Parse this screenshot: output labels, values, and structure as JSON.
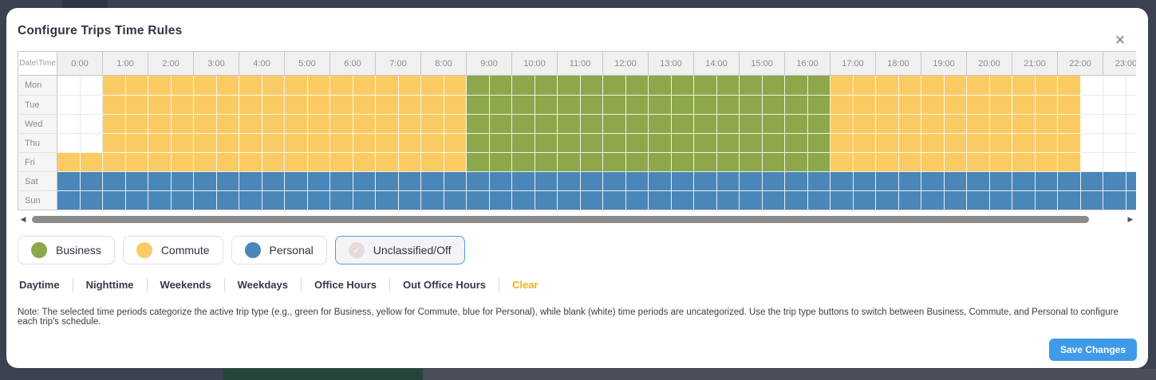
{
  "modal": {
    "title": "Configure Trips Time Rules",
    "close_icon": "✕"
  },
  "grid": {
    "corner_label": "Date\\Time",
    "hours": [
      "0:00",
      "1:00",
      "2:00",
      "3:00",
      "4:00",
      "5:00",
      "6:00",
      "7:00",
      "8:00",
      "9:00",
      "10:00",
      "11:00",
      "12:00",
      "13:00",
      "14:00",
      "15:00",
      "16:00",
      "17:00",
      "18:00",
      "19:00",
      "20:00",
      "21:00",
      "22:00",
      "23:00"
    ],
    "slot_minutes": 30,
    "days": [
      {
        "label": "Mon",
        "segments": [
          {
            "type": "off",
            "slots": 2
          },
          {
            "type": "commute",
            "slots": 16
          },
          {
            "type": "business",
            "slots": 16
          },
          {
            "type": "commute",
            "slots": 11
          },
          {
            "type": "off",
            "slots": 3
          }
        ]
      },
      {
        "label": "Tue",
        "segments": [
          {
            "type": "off",
            "slots": 2
          },
          {
            "type": "commute",
            "slots": 16
          },
          {
            "type": "business",
            "slots": 16
          },
          {
            "type": "commute",
            "slots": 11
          },
          {
            "type": "off",
            "slots": 3
          }
        ]
      },
      {
        "label": "Wed",
        "segments": [
          {
            "type": "off",
            "slots": 2
          },
          {
            "type": "commute",
            "slots": 16
          },
          {
            "type": "business",
            "slots": 16
          },
          {
            "type": "commute",
            "slots": 11
          },
          {
            "type": "off",
            "slots": 3
          }
        ]
      },
      {
        "label": "Thu",
        "segments": [
          {
            "type": "off",
            "slots": 2
          },
          {
            "type": "commute",
            "slots": 16
          },
          {
            "type": "business",
            "slots": 16
          },
          {
            "type": "commute",
            "slots": 11
          },
          {
            "type": "off",
            "slots": 3
          }
        ]
      },
      {
        "label": "Fri",
        "segments": [
          {
            "type": "commute",
            "slots": 18
          },
          {
            "type": "business",
            "slots": 16
          },
          {
            "type": "commute",
            "slots": 11
          },
          {
            "type": "off",
            "slots": 3
          }
        ]
      },
      {
        "label": "Sat",
        "segments": [
          {
            "type": "personal",
            "slots": 48
          }
        ]
      },
      {
        "label": "Sun",
        "segments": [
          {
            "type": "personal",
            "slots": 48
          }
        ]
      }
    ]
  },
  "colors": {
    "business": "#8CA84A",
    "commute": "#FBCB63",
    "personal": "#4A86B8",
    "off": "#FFFFFF",
    "accent": "#4A9CEC",
    "save": "#3F9BE9",
    "clear": "#F9B017",
    "unclassified_dot": "#E6DADA"
  },
  "legend": [
    {
      "id": "business",
      "label": "Business",
      "color": "#8CA84A",
      "selected": false
    },
    {
      "id": "commute",
      "label": "Commute",
      "color": "#FBCB63",
      "selected": false
    },
    {
      "id": "personal",
      "label": "Personal",
      "color": "#4A86B8",
      "selected": false
    },
    {
      "id": "unclassified",
      "label": "Unclassified/Off",
      "color": "#E6DADA",
      "selected": true,
      "check_icon": "✓"
    }
  ],
  "presets": {
    "items": [
      "Daytime",
      "Nighttime",
      "Weekends",
      "Weekdays",
      "Office Hours",
      "Out Office Hours"
    ],
    "clear_label": "Clear"
  },
  "note": "Note: The selected time periods categorize the active trip type (e.g., green for Business, yellow for Commute, blue for Personal), while blank (white) time periods are uncategorized. Use the trip type buttons to switch between Business, Commute, and Personal to configure each trip's schedule.",
  "footer": {
    "save_label": "Save Changes"
  },
  "scrollbar": {
    "left_arrow": "◀",
    "right_arrow": "▶"
  }
}
